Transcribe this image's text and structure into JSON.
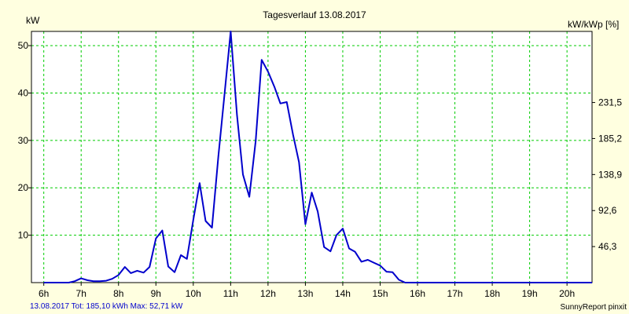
{
  "chart_data": {
    "type": "line",
    "title": "Tagesverlauf 13.08.2017",
    "ylabel_left": "kW",
    "ylabel_right": "kW/kWp [%]",
    "x_tick_labels": [
      "6h",
      "7h",
      "8h",
      "9h",
      "10h",
      "11h",
      "12h",
      "13h",
      "14h",
      "15h",
      "16h",
      "17h",
      "18h",
      "19h",
      "20h"
    ],
    "xlim_hours": [
      5.67,
      20.67
    ],
    "ylim": [
      0,
      53
    ],
    "y_ticks_left": [
      {
        "value": 10,
        "label": "10"
      },
      {
        "value": 20,
        "label": "20"
      },
      {
        "value": 30,
        "label": "30"
      },
      {
        "value": 40,
        "label": "40"
      },
      {
        "value": 50,
        "label": "50"
      }
    ],
    "y_ticks_right": [
      {
        "value": 7.6,
        "label": "46,3"
      },
      {
        "value": 15.2,
        "label": "92,6"
      },
      {
        "value": 22.8,
        "label": "138,9"
      },
      {
        "value": 30.4,
        "label": "185,2"
      },
      {
        "value": 38.0,
        "label": "231,5"
      }
    ],
    "grid": true,
    "series": [
      {
        "color": "#0000cc",
        "x": [
          6.0,
          6.33,
          6.5,
          6.67,
          6.83,
          7.0,
          7.17,
          7.33,
          7.5,
          7.67,
          7.83,
          8.0,
          8.17,
          8.33,
          8.5,
          8.67,
          8.83,
          9.0,
          9.17,
          9.33,
          9.5,
          9.67,
          9.83,
          10.0,
          10.17,
          10.33,
          10.5,
          10.67,
          10.83,
          11.0,
          11.17,
          11.33,
          11.5,
          11.67,
          11.83,
          12.0,
          12.17,
          12.33,
          12.5,
          12.67,
          12.83,
          13.0,
          13.17,
          13.33,
          13.5,
          13.67,
          13.83,
          14.0,
          14.17,
          14.33,
          14.5,
          14.67,
          14.83,
          15.0,
          15.17,
          15.33,
          15.5,
          15.67,
          15.83,
          16.0,
          16.17,
          16.33,
          16.5,
          16.67,
          16.83,
          17.0,
          17.17,
          17.33,
          17.5,
          17.67,
          17.83,
          18.0,
          18.17,
          18.33,
          18.5,
          18.67,
          18.83,
          19.0,
          19.17,
          19.33,
          19.5,
          19.67,
          19.83,
          20.0,
          20.17,
          20.33,
          20.5,
          20.67
        ],
        "values": [
          0,
          0,
          0,
          0,
          0.3,
          0.9,
          0.5,
          0.3,
          0.3,
          0.4,
          0.8,
          1.6,
          3.3,
          2.0,
          2.5,
          2.1,
          3.3,
          9.3,
          11.0,
          3.4,
          2.2,
          5.8,
          5.0,
          13.2,
          21.0,
          13.0,
          11.6,
          26.6,
          39.3,
          53.0,
          35.4,
          22.8,
          18.1,
          29.9,
          47.0,
          44.5,
          41.3,
          37.8,
          38.1,
          31.2,
          25.4,
          12.3,
          19.0,
          15.0,
          7.5,
          6.6,
          10.0,
          11.4,
          7.2,
          6.5,
          4.4,
          4.8,
          4.2,
          3.6,
          2.3,
          2.2,
          0.6,
          0,
          0,
          0,
          0,
          0,
          0,
          0,
          0,
          0,
          0,
          0,
          0,
          0,
          0,
          0,
          0,
          0,
          0,
          0,
          0,
          0,
          0,
          0,
          0,
          0,
          0,
          0,
          0,
          0,
          0,
          0
        ]
      }
    ]
  },
  "footer": {
    "left_text": "13.08.2017 Tot: 185,10 kWh Max: 52,71 kW",
    "right_text": "SunnyReport pinxit"
  },
  "colors": {
    "background": "#ffffe0",
    "plot_background": "#ffffff",
    "grid": "#00cc00",
    "line": "#0000cc",
    "footer_left": "#0000cc",
    "text": "#000000"
  }
}
